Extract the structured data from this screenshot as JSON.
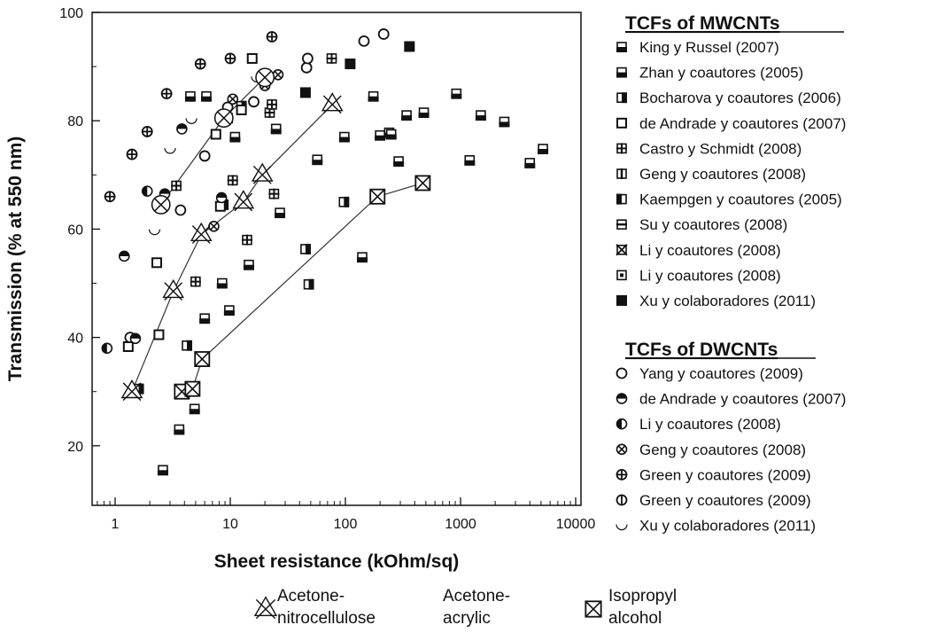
{
  "chart_data": {
    "type": "scatter",
    "xscale": "log",
    "xlabel": "Sheet resistance (kOhm/sq)",
    "ylabel": "Transmission (% at 550 nm)",
    "xlim": [
      0.5,
      10000
    ],
    "ylim": [
      10,
      100
    ],
    "x_ticks": [
      1,
      10,
      100,
      1000,
      10000
    ],
    "x_tick_labels": [
      "1",
      "10",
      "100",
      "1000",
      "10000"
    ],
    "y_ticks": [
      20,
      40,
      60,
      80,
      100
    ],
    "y_tick_labels": [
      "20",
      "40",
      "60",
      "80",
      "100"
    ],
    "legend_groups": [
      {
        "title": "TCFs of MWCNTs",
        "entries": [
          {
            "label": "King y Russel",
            "year": "(2007)",
            "marker": "sq-half-bottom"
          },
          {
            "label": "Zhan y coautores",
            "year": "(2005)",
            "marker": "sq-half-bottom"
          },
          {
            "label": "Bocharova y coautores",
            "year": "(2006)",
            "marker": "sq-half-right"
          },
          {
            "label": "de Andrade y coautores",
            "year": "(2007)",
            "marker": "sq-open"
          },
          {
            "label": "Castro y Schmidt",
            "year": "(2008)",
            "marker": "sq-cross"
          },
          {
            "label": "Geng y coautores",
            "year": "(2008)",
            "marker": "sq-vline"
          },
          {
            "label": "Kaempgen y coautores",
            "year": "(2005)",
            "marker": "sq-half-left"
          },
          {
            "label": "Su y coautores",
            "year": "(2008)",
            "marker": "sq-hline"
          },
          {
            "label": "Li y coautores",
            "year": "(2008)",
            "marker": "sq-x"
          },
          {
            "label": "Li y coautores",
            "year": "(2008)",
            "marker": "sq-dot"
          },
          {
            "label": "Xu y colaboradores",
            "year": "(2011)",
            "marker": "sq-filled"
          }
        ]
      },
      {
        "title": "TCFs of DWCNTs",
        "entries": [
          {
            "label": "Yang y coautores",
            "year": "(2009)",
            "marker": "c-open"
          },
          {
            "label": "de Andrade y coautores",
            "year": "(2007)",
            "marker": "c-half-top"
          },
          {
            "label": "Li y coautores",
            "year": "(2008)",
            "marker": "c-half-left"
          },
          {
            "label": "Geng y coautores",
            "year": "(2008)",
            "marker": "c-x"
          },
          {
            "label": "Green y coautores",
            "year": "(2009)",
            "marker": "c-cross"
          },
          {
            "label": "Green y coautores",
            "year": "(2009)",
            "marker": "c-vline"
          },
          {
            "label": "Xu y colaboradores",
            "year": "(2011)",
            "marker": "c-crescent"
          }
        ]
      }
    ],
    "solvent_legend": [
      {
        "label_line1": "Acetone-",
        "label_line2": "nitrocellulose",
        "marker": "star-x"
      },
      {
        "label_line1": "Acetone-",
        "label_line2": "acrylic",
        "marker": "c-x-big"
      },
      {
        "label_line1": "Isopropyl",
        "label_line2": "alcohol",
        "marker": "sq-x-big"
      }
    ],
    "lines": [
      {
        "name": "Acetone-nitrocellulose",
        "marker": "star-x",
        "points": [
          [
            1.4,
            30
          ],
          [
            3.2,
            48.5
          ],
          [
            5.6,
            59
          ],
          [
            13,
            65
          ],
          [
            19,
            70
          ],
          [
            77,
            83
          ]
        ]
      },
      {
        "name": "Acetone-acrylic",
        "marker": "c-x-big",
        "points": [
          [
            2.5,
            64.5
          ],
          [
            8.8,
            80.5
          ],
          [
            20,
            88
          ]
        ]
      },
      {
        "name": "Isopropyl alcohol",
        "marker": "sq-x-big",
        "points": [
          [
            3.8,
            30
          ],
          [
            4.7,
            30.5
          ],
          [
            5.7,
            36
          ],
          [
            190,
            66
          ],
          [
            470,
            68.5
          ]
        ]
      }
    ],
    "series": [
      {
        "name": "MWCNT-black",
        "marker": "sq-half-bottom",
        "points": [
          [
            2.6,
            15.5
          ],
          [
            3.6,
            23
          ],
          [
            4.9,
            26.8
          ],
          [
            6,
            43.5
          ],
          [
            9.8,
            45
          ],
          [
            14.5,
            53.4
          ],
          [
            8.5,
            50
          ],
          [
            27,
            63
          ],
          [
            57,
            72.8
          ],
          [
            98,
            77
          ],
          [
            175,
            84.5
          ],
          [
            240,
            77.8
          ],
          [
            290,
            72.5
          ],
          [
            340,
            81
          ],
          [
            480,
            81.5
          ],
          [
            920,
            85
          ],
          [
            1200,
            72.7
          ],
          [
            1500,
            81
          ],
          [
            2400,
            79.8
          ],
          [
            4000,
            72.2
          ],
          [
            5200,
            74.8
          ],
          [
            140,
            54.8
          ],
          [
            25,
            78.5
          ],
          [
            11,
            77
          ]
        ]
      },
      {
        "name": "MWCNT-halfright",
        "marker": "sq-half-right",
        "points": [
          [
            1.6,
            30.5
          ],
          [
            4.2,
            38.5
          ],
          [
            8.7,
            64.5
          ],
          [
            12.5,
            82.7
          ],
          [
            48,
            49.8
          ],
          [
            97,
            65
          ],
          [
            45,
            56.3
          ]
        ]
      },
      {
        "name": "MWCNT-open",
        "marker": "sq-open",
        "points": [
          [
            1.3,
            38.3
          ],
          [
            2.4,
            40.5
          ],
          [
            2.3,
            53.8
          ],
          [
            8.2,
            64.2
          ],
          [
            7.5,
            77.5
          ],
          [
            12.5,
            82
          ],
          [
            15.5,
            91.5
          ]
        ]
      },
      {
        "name": "MWCNT-cross",
        "marker": "sq-cross",
        "points": [
          [
            3.4,
            68
          ],
          [
            5,
            50.3
          ],
          [
            10.5,
            69
          ],
          [
            14,
            58
          ],
          [
            22,
            81.5
          ],
          [
            24,
            66.5
          ],
          [
            76,
            91.5
          ],
          [
            23,
            83
          ]
        ]
      },
      {
        "name": "MWCNT-filled",
        "marker": "sq-filled",
        "points": [
          [
            45,
            85.2
          ],
          [
            110,
            90.5
          ],
          [
            360,
            93.7
          ]
        ]
      },
      {
        "name": "MWCNT-halfbottom2",
        "marker": "sq-half-bottom",
        "points": [
          [
            4.5,
            84.5
          ],
          [
            6.2,
            84.5
          ],
          [
            9.5,
            80.5
          ],
          [
            200,
            77.3
          ],
          [
            250,
            77.5
          ]
        ]
      },
      {
        "name": "DWCNT-open",
        "marker": "c-open",
        "points": [
          [
            1.35,
            40
          ],
          [
            3.7,
            63.5
          ],
          [
            6,
            73.5
          ],
          [
            9.5,
            82.5
          ],
          [
            16,
            83.5
          ],
          [
            46,
            89.8
          ],
          [
            47,
            91.5
          ],
          [
            145,
            94.7
          ],
          [
            215,
            96
          ]
        ]
      },
      {
        "name": "DWCNT-half",
        "marker": "c-half-top",
        "points": [
          [
            1.2,
            55
          ],
          [
            1.5,
            39.8
          ],
          [
            3.8,
            78.5
          ],
          [
            2.7,
            66.5
          ],
          [
            8.4,
            65.8
          ]
        ]
      },
      {
        "name": "DWCNT-cross",
        "marker": "c-cross",
        "points": [
          [
            0.9,
            66
          ],
          [
            1.4,
            73.8
          ],
          [
            1.9,
            78
          ],
          [
            2.8,
            85
          ],
          [
            5.5,
            90.5
          ],
          [
            10,
            91.5
          ],
          [
            23,
            95.5
          ]
        ]
      },
      {
        "name": "DWCNT-x",
        "marker": "c-x",
        "points": [
          [
            2.6,
            64.8
          ],
          [
            7.2,
            60.5
          ],
          [
            26,
            88.5
          ],
          [
            20,
            86.5
          ],
          [
            10.5,
            84
          ]
        ]
      },
      {
        "name": "DWCNT-moon",
        "marker": "c-crescent",
        "points": [
          [
            2.2,
            59.8
          ],
          [
            3,
            74.8
          ],
          [
            4.6,
            80.3
          ],
          [
            17,
            88
          ]
        ]
      },
      {
        "name": "DWCNT-edge",
        "marker": "c-half-left",
        "points": [
          [
            0.85,
            38
          ],
          [
            1.9,
            67
          ]
        ]
      }
    ]
  }
}
